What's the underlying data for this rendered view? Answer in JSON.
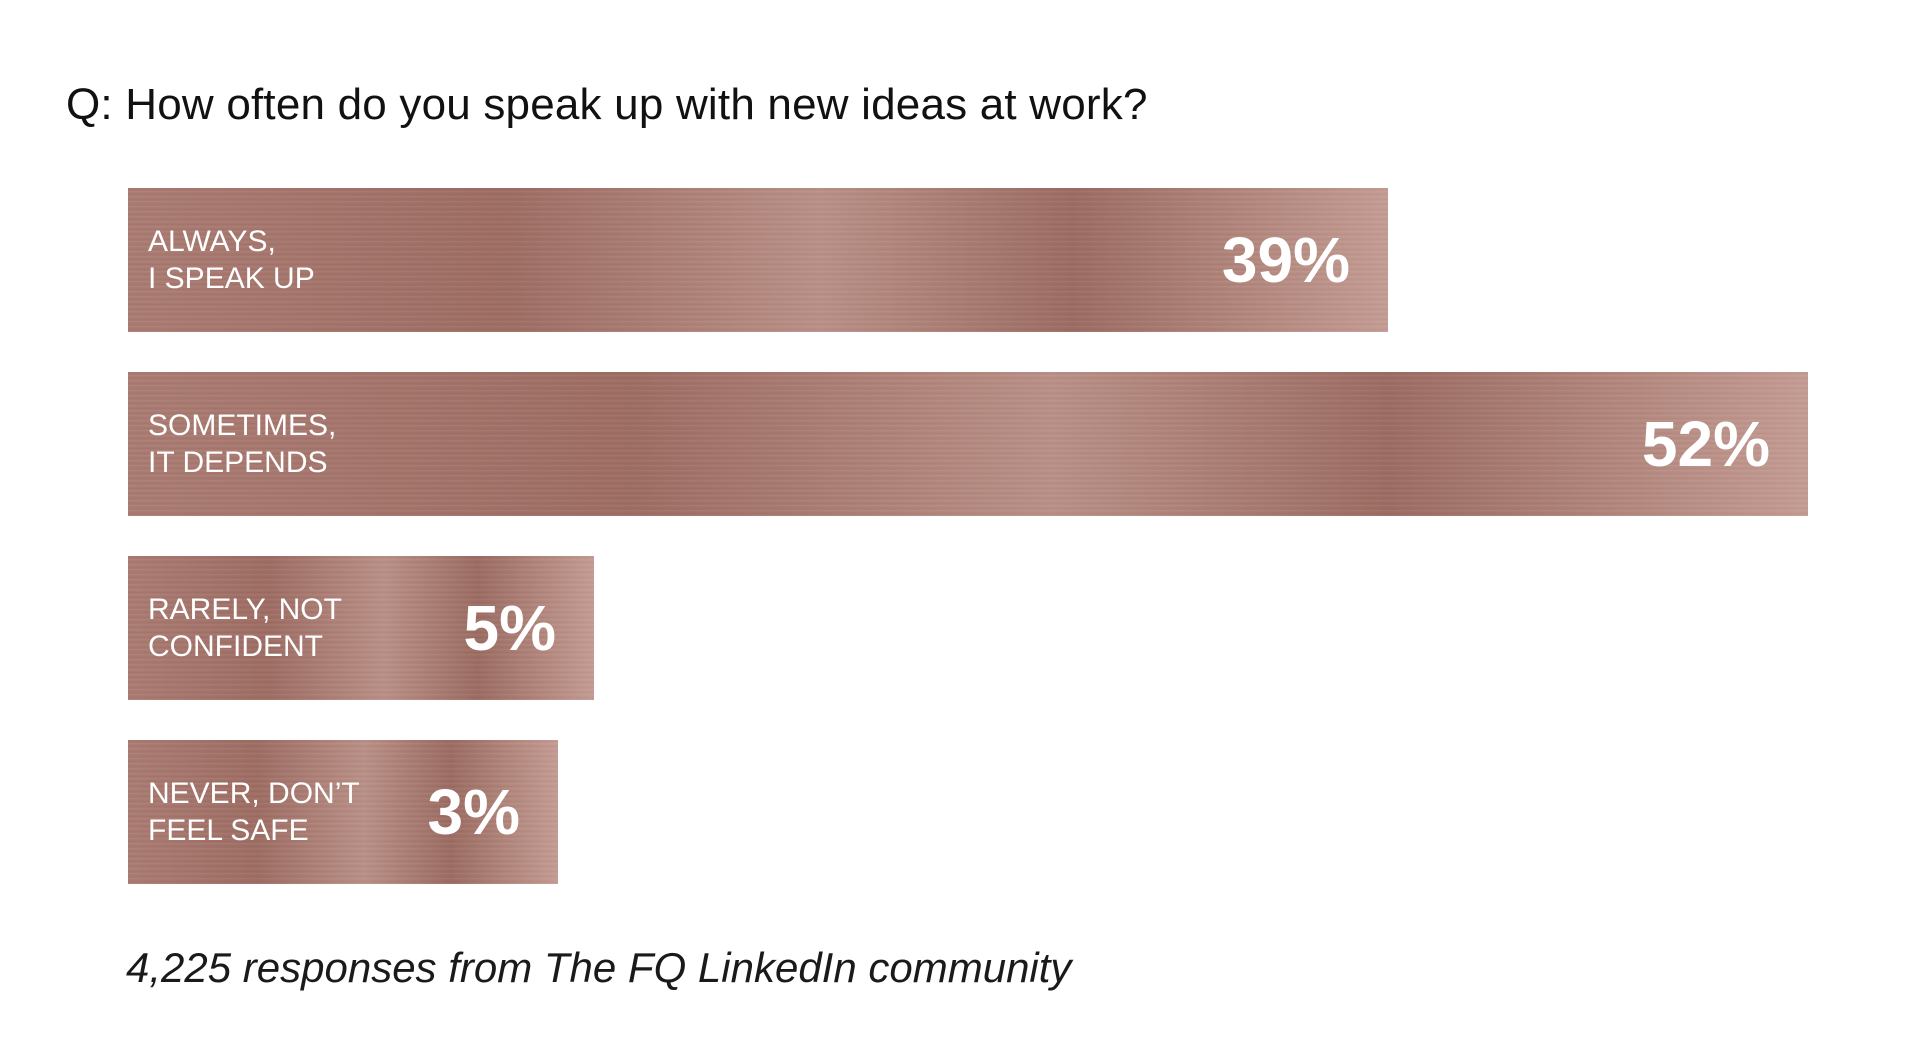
{
  "question": "Q: How often do you speak up with new ideas at work?",
  "footnote": "4,225 responses from The FQ LinkedIn community",
  "colors": {
    "bar": "#b07f76",
    "text_on_bar": "#ffffff",
    "background": "#ffffff"
  },
  "chart_data": {
    "type": "bar",
    "orientation": "horizontal",
    "title": "Q: How often do you speak up with new ideas at work?",
    "categories": [
      "ALWAYS,\nI SPEAK UP",
      "SOMETIMES,\nIT DEPENDS",
      "RARELY, NOT\nCONFIDENT",
      "NEVER, DON’T\nFEEL SAFE"
    ],
    "values": [
      39,
      52,
      5,
      3
    ],
    "value_labels": [
      "39%",
      "52%",
      "5%",
      "3%"
    ],
    "unit": "%",
    "grid": false,
    "legend": "none",
    "xlabel": "",
    "ylabel": ""
  }
}
